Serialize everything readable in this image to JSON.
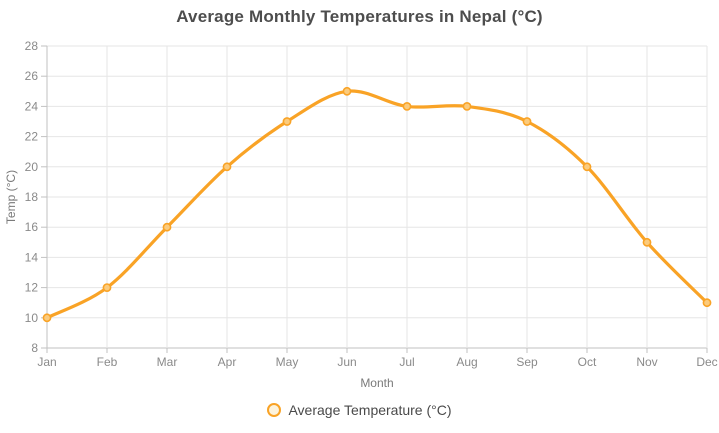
{
  "chart_data": {
    "type": "line",
    "title": "Average Monthly Temperatures in Nepal (°C)",
    "xlabel": "Month",
    "ylabel": "Temp (°C)",
    "categories": [
      "Jan",
      "Feb",
      "Mar",
      "Apr",
      "May",
      "Jun",
      "Jul",
      "Aug",
      "Sep",
      "Oct",
      "Nov",
      "Dec"
    ],
    "series": [
      {
        "name": "Average Temperature (°C)",
        "values": [
          10,
          12,
          16,
          20,
          23,
          25,
          24,
          24,
          23,
          20,
          15,
          11
        ]
      }
    ],
    "ylim": [
      8,
      28
    ],
    "y_ticks": [
      8,
      10,
      12,
      14,
      16,
      18,
      20,
      22,
      24,
      26,
      28
    ],
    "grid": true,
    "line_smooth": true,
    "legend_position": "bottom",
    "colors": {
      "line": "#F9A326",
      "marker_fill": "#FBCB7D",
      "legend_marker_fill": "#FDF3DC",
      "grid": "#E6E6E6",
      "axis": "#C2C2C2",
      "tick_text": "#8A8A8A",
      "axis_title_text": "#7A7A7A",
      "title_text": "#4D4D4D",
      "legend_text": "#4A4A4A",
      "background": "#FFFFFF"
    }
  }
}
